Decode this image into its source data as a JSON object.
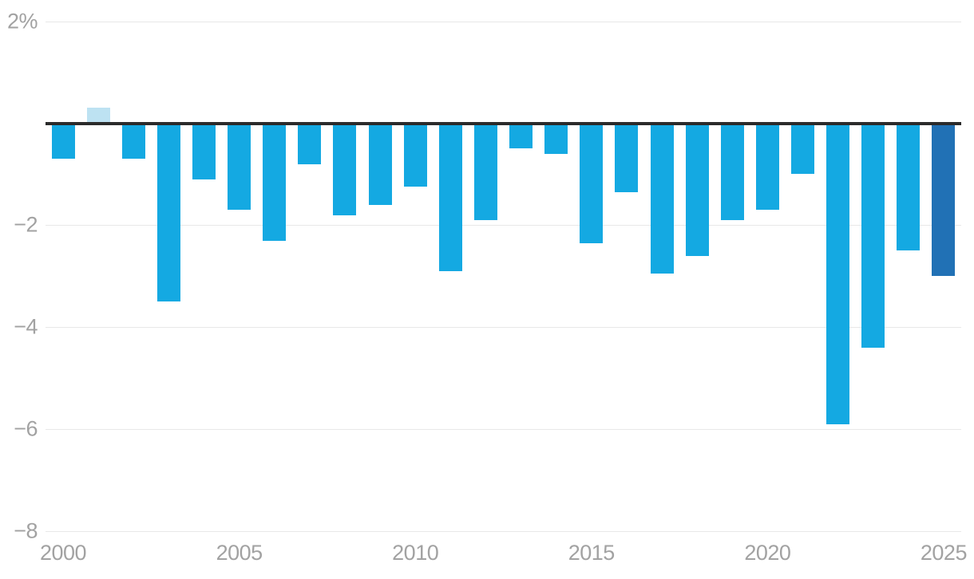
{
  "chart_data": {
    "type": "bar",
    "title": "",
    "unit": "%",
    "categories": [
      2000,
      2001,
      2002,
      2003,
      2004,
      2005,
      2006,
      2007,
      2008,
      2009,
      2010,
      2011,
      2012,
      2013,
      2014,
      2015,
      2016,
      2017,
      2018,
      2019,
      2020,
      2021,
      2022,
      2023,
      2024,
      2025
    ],
    "values": [
      -0.7,
      0.3,
      -0.7,
      -3.5,
      -1.1,
      -1.7,
      -2.3,
      -0.8,
      -1.8,
      -1.6,
      -1.25,
      -2.9,
      -1.9,
      -0.5,
      -0.6,
      -2.35,
      -1.35,
      -2.95,
      -2.6,
      -1.9,
      -1.7,
      -1.0,
      -5.9,
      -4.4,
      -2.5,
      -3.0
    ],
    "bar_color_roles": [
      "default",
      "positive_light",
      "default",
      "default",
      "default",
      "default",
      "default",
      "default",
      "default",
      "default",
      "default",
      "default",
      "default",
      "default",
      "default",
      "default",
      "default",
      "default",
      "default",
      "default",
      "default",
      "default",
      "default",
      "default",
      "default",
      "final_dark"
    ],
    "ylim": [
      -8,
      2
    ],
    "yticks": [
      {
        "value": 2,
        "label": "2%"
      },
      {
        "value": -2,
        "label": "−2"
      },
      {
        "value": -4,
        "label": "−4"
      },
      {
        "value": -6,
        "label": "−6"
      },
      {
        "value": -8,
        "label": "−8"
      }
    ],
    "xticks": [
      {
        "year": 2000,
        "label": "2000"
      },
      {
        "year": 2005,
        "label": "2005"
      },
      {
        "year": 2010,
        "label": "2010"
      },
      {
        "year": 2015,
        "label": "2015"
      },
      {
        "year": 2020,
        "label": "2020"
      },
      {
        "year": 2025,
        "label": "2025"
      }
    ],
    "grid": true,
    "legend": "none",
    "colors": {
      "background": "#FFFFFF",
      "bar_default": "#14A9E2",
      "bar_positive_light": "#BDE2F2",
      "bar_final_dark": "#2171B5",
      "zero_line": "#2B2B2B",
      "gridline": "#E8E8E8",
      "tick_label": "#A2A2A2"
    }
  }
}
